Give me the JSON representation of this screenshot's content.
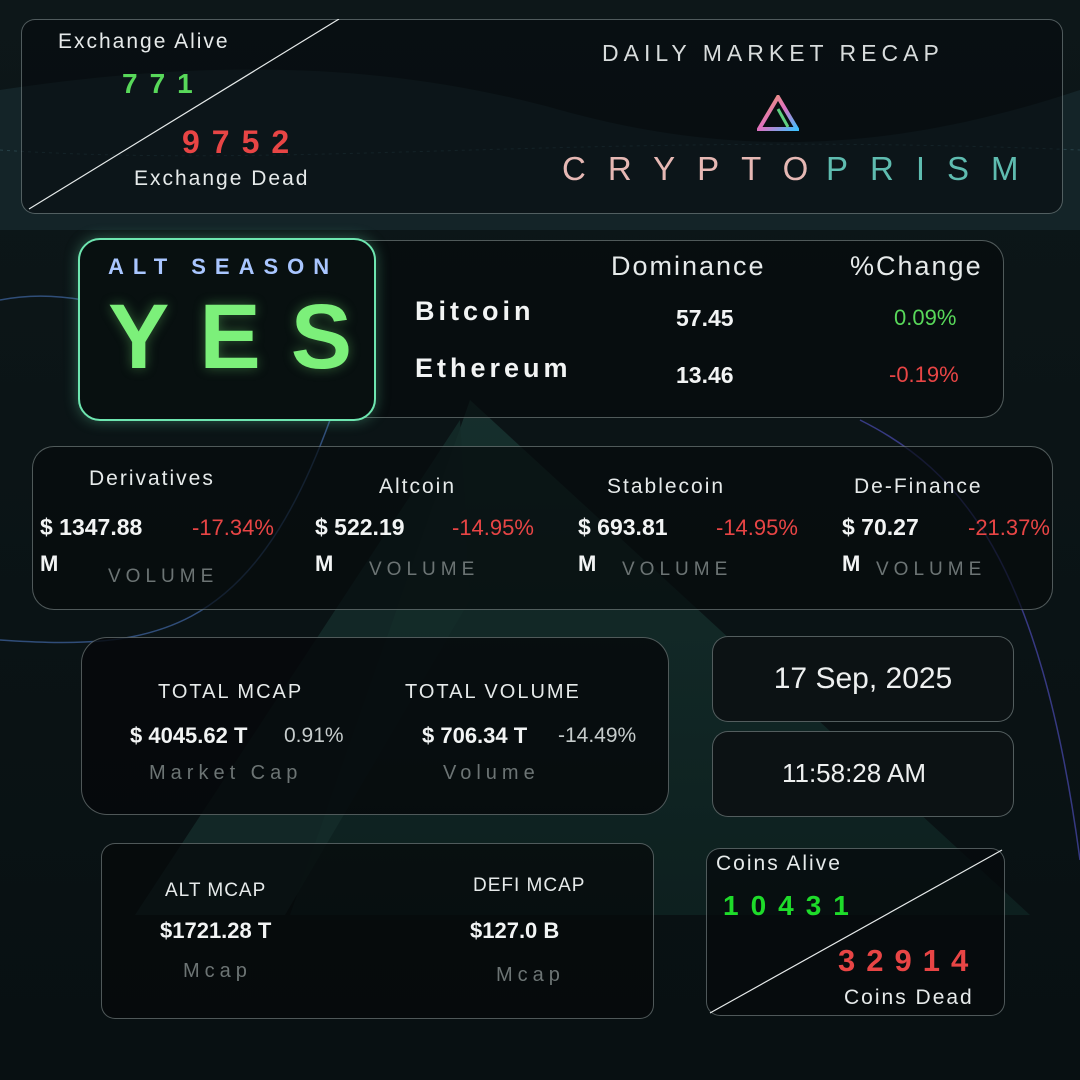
{
  "header": {
    "exchange_alive_label": "Exchange Alive",
    "exchange_alive_value": "771",
    "exchange_dead_value": "9752",
    "exchange_dead_label": "Exchange Dead",
    "recap_title": "DAILY MARKET RECAP",
    "brand_word1": "CRYPTO",
    "brand_word2": "PRISM",
    "logo_icon": "prism-triangle-icon"
  },
  "alt_season": {
    "label": "ALT SEASON",
    "value": "YES"
  },
  "dominance": {
    "col_dominance": "Dominance",
    "col_change": "%Change",
    "rows": [
      {
        "name": "Bitcoin",
        "dominance": "57.45",
        "change": "0.09%"
      },
      {
        "name": "Ethereum",
        "dominance": "13.46",
        "change": "-0.19%"
      }
    ]
  },
  "volumes": {
    "unit_suffix": "M",
    "caption": "VOLUME",
    "items": [
      {
        "name": "Derivatives",
        "value": "$ 1347.88",
        "change": "-17.34%"
      },
      {
        "name": "Altcoin",
        "value": "$ 522.19",
        "change": "-14.95%"
      },
      {
        "name": "Stablecoin",
        "value": "$ 693.81",
        "change": "-14.95%"
      },
      {
        "name": "De-Finance",
        "value": "$ 70.27",
        "change": "-21.37%"
      }
    ]
  },
  "totals": {
    "mcap_label": "TOTAL MCAP",
    "mcap_value": "$ 4045.62 T",
    "mcap_change": "0.91%",
    "mcap_caption": "Market Cap",
    "volume_label": "TOTAL VOLUME",
    "volume_value": "$ 706.34 T",
    "volume_change": "-14.49%",
    "volume_caption": "Volume"
  },
  "datetime": {
    "date": "17 Sep, 2025",
    "time": "11:58:28 AM"
  },
  "alt_defi": {
    "alt_label": "ALT MCAP",
    "alt_value": "$1721.28 T",
    "alt_caption": "Mcap",
    "defi_label": "DEFI MCAP",
    "defi_value": "$127.0 B",
    "defi_caption": "Mcap"
  },
  "coins": {
    "alive_label": "Coins Alive",
    "alive_value": "10431",
    "dead_value": "32914",
    "dead_label": "Coins Dead"
  },
  "colors": {
    "positive": "#58d85a",
    "negative": "#e84545",
    "yes_green": "#7cf07a",
    "accent_blue": "#a9c6ff",
    "brand_pink": "#e6b8b4",
    "brand_teal": "#5fbcb0"
  }
}
